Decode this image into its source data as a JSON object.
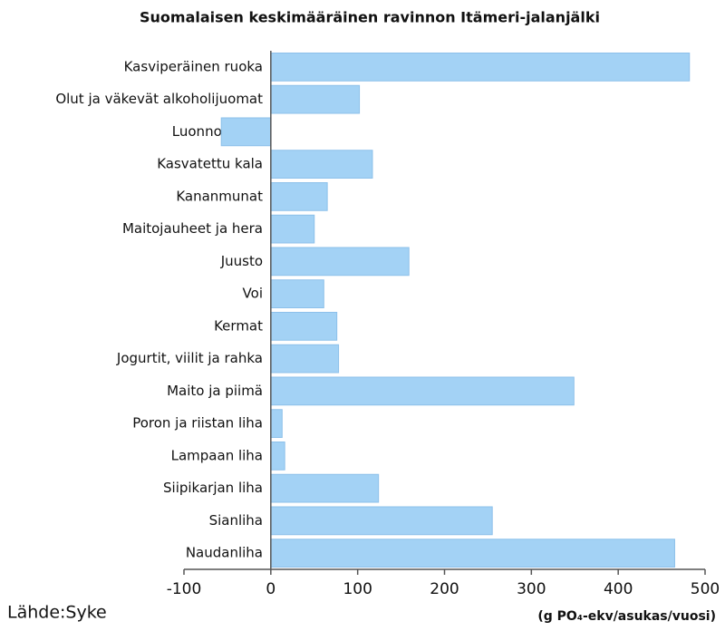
{
  "chart_data": {
    "type": "barh",
    "title": "Suomalaisen keskimääräinen ravinnon Itämeri-jalanjälki",
    "categories": [
      "Kasviperäinen ruoka",
      "Olut ja väkevät alkoholijuomat",
      "Luonnon kala",
      "Kasvatettu kala",
      "Kananmunat",
      "Maitojauheet ja hera",
      "Juusto",
      "Voi",
      "Kermat",
      "Jogurtit, viilit ja rahka",
      "Maito ja piimä",
      "Poron ja riistan liha",
      "Lampaan liha",
      "Siipikarjan liha",
      "Sianliha",
      "Naudanliha"
    ],
    "values": [
      482,
      102,
      -57,
      117,
      65,
      50,
      159,
      61,
      76,
      78,
      349,
      13,
      16,
      124,
      255,
      465
    ],
    "color": "#a3d2f5",
    "xlim": [
      -100,
      500
    ],
    "xticks": [
      -100,
      0,
      100,
      200,
      300,
      400,
      500
    ],
    "x_label": "(g PO₄-ekv/asukas/vuosi)",
    "source": "Lähde:Syke",
    "grid": false
  }
}
